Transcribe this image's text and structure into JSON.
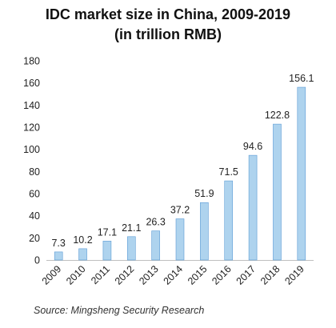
{
  "chart_data": {
    "type": "bar",
    "title_line1": "IDC market size in China, 2009-2019",
    "title_line2": "(in trillion RMB)",
    "categories": [
      "2009",
      "2010",
      "2011",
      "2012",
      "2013",
      "2014",
      "2015",
      "2016",
      "2017",
      "2018",
      "2019"
    ],
    "values": [
      7.3,
      10.2,
      17.1,
      21.1,
      26.3,
      37.2,
      51.9,
      71.5,
      94.6,
      122.8,
      156.1
    ],
    "data_labels": [
      "7.3",
      "10.2",
      "17.1",
      "21.1",
      "26.3",
      "37.2",
      "51.9",
      "71.5",
      "94.6",
      "122.8",
      "156.1"
    ],
    "yticks": [
      0,
      20,
      40,
      60,
      80,
      100,
      120,
      140,
      160,
      180
    ],
    "ylim": [
      0,
      180
    ],
    "grid": false,
    "bar_color": "#aed3ee",
    "bar_edge_color": "#5b9bd5"
  },
  "source": "Source: Mingsheng Security Research"
}
